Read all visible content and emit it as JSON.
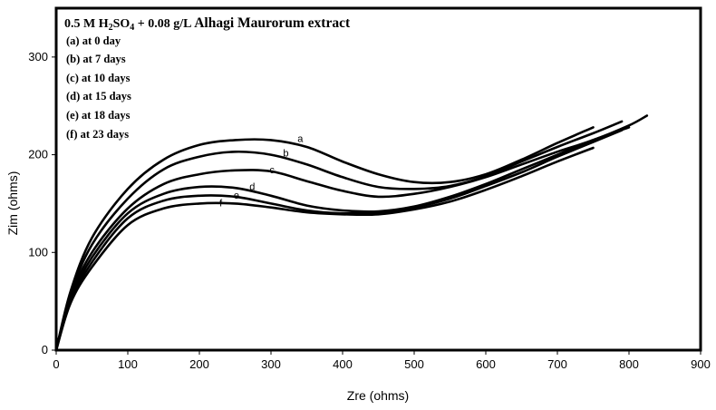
{
  "chart_data": {
    "type": "line",
    "title_parts": {
      "pre": "0.5 M H",
      "sub1": "2",
      "mid": "SO",
      "sub2": "4",
      "post": " + 0.08 g/L ",
      "bold": "Alhagi Maurorum extract"
    },
    "xlabel": "Zre (ohms)",
    "ylabel": "Zim (ohms)",
    "xlim": [
      0,
      900
    ],
    "ylim": [
      0,
      350
    ],
    "xticks": [
      "0",
      "100",
      "200",
      "300",
      "400",
      "500",
      "600",
      "700",
      "800",
      "900"
    ],
    "yticks": [
      "0",
      "100",
      "200",
      "300"
    ],
    "legend": [
      "(a) at 0 day",
      "(b) at 7 days",
      "(c) at 10 days",
      "(d) at 15 days",
      "(e) at 18 days",
      "(f) at 23 days"
    ],
    "series": [
      {
        "name": "a",
        "x": [
          0,
          20,
          50,
          100,
          150,
          200,
          250,
          300,
          350,
          400,
          450,
          500,
          550,
          600,
          650,
          700,
          750
        ],
        "y": [
          0,
          60,
          115,
          165,
          195,
          210,
          215,
          215,
          208,
          193,
          180,
          172,
          172,
          180,
          195,
          212,
          228
        ]
      },
      {
        "name": "b",
        "x": [
          0,
          20,
          50,
          100,
          150,
          200,
          250,
          300,
          350,
          400,
          450,
          500,
          550,
          600,
          650,
          700,
          750,
          790
        ],
        "y": [
          0,
          57,
          108,
          155,
          185,
          198,
          203,
          200,
          190,
          177,
          167,
          165,
          168,
          178,
          193,
          208,
          222,
          234
        ]
      },
      {
        "name": "c",
        "x": [
          0,
          20,
          50,
          100,
          150,
          200,
          250,
          300,
          350,
          400,
          450,
          500,
          550,
          600,
          650,
          700,
          750,
          800,
          825
        ],
        "y": [
          0,
          55,
          100,
          145,
          170,
          180,
          184,
          183,
          173,
          163,
          157,
          160,
          167,
          177,
          190,
          203,
          215,
          230,
          240
        ]
      },
      {
        "name": "d",
        "x": [
          0,
          20,
          50,
          100,
          150,
          200,
          250,
          300,
          350,
          400,
          450,
          500,
          550,
          600,
          650,
          700,
          750,
          800
        ],
        "y": [
          0,
          52,
          95,
          140,
          160,
          167,
          166,
          158,
          148,
          143,
          142,
          147,
          157,
          170,
          185,
          200,
          215,
          228
        ]
      },
      {
        "name": "e",
        "x": [
          0,
          20,
          50,
          100,
          150,
          200,
          250,
          300,
          350,
          400,
          450,
          500,
          550,
          600,
          650,
          700,
          750,
          790
        ],
        "y": [
          0,
          50,
          90,
          135,
          153,
          158,
          157,
          150,
          143,
          140,
          141,
          146,
          155,
          168,
          182,
          198,
          213,
          225
        ]
      },
      {
        "name": "f",
        "x": [
          0,
          20,
          50,
          100,
          150,
          200,
          250,
          300,
          350,
          400,
          450,
          500,
          550,
          600,
          650,
          700,
          750
        ],
        "y": [
          0,
          48,
          85,
          128,
          145,
          150,
          150,
          146,
          141,
          139,
          139,
          144,
          152,
          164,
          178,
          193,
          207
        ]
      }
    ],
    "curve_labels": [
      {
        "text": "a",
        "x": 337,
        "y": 213
      },
      {
        "text": "b",
        "x": 317,
        "y": 198
      },
      {
        "text": "c",
        "x": 298,
        "y": 181
      },
      {
        "text": "d",
        "x": 270,
        "y": 164
      },
      {
        "text": "e",
        "x": 248,
        "y": 155
      },
      {
        "text": "f",
        "x": 228,
        "y": 147
      }
    ]
  }
}
